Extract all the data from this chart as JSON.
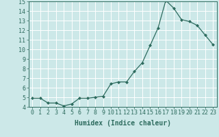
{
  "x": [
    0,
    1,
    2,
    3,
    4,
    5,
    6,
    7,
    8,
    9,
    10,
    11,
    12,
    13,
    14,
    15,
    16,
    17,
    18,
    19,
    20,
    21,
    22,
    23
  ],
  "y": [
    4.9,
    4.9,
    4.4,
    4.4,
    4.1,
    4.3,
    4.9,
    4.9,
    5.0,
    5.1,
    6.4,
    6.6,
    6.6,
    7.7,
    8.6,
    10.4,
    12.2,
    15.1,
    14.3,
    13.1,
    12.9,
    12.5,
    11.5,
    10.5
  ],
  "line_color": "#2d6b5e",
  "marker": "D",
  "markersize": 2.0,
  "linewidth": 0.9,
  "xlabel": "Humidex (Indice chaleur)",
  "xlabel_fontsize": 7,
  "ylim": [
    4,
    15
  ],
  "xlim": [
    -0.5,
    23.5
  ],
  "yticks": [
    4,
    5,
    6,
    7,
    8,
    9,
    10,
    11,
    12,
    13,
    14,
    15
  ],
  "xticks": [
    0,
    1,
    2,
    3,
    4,
    5,
    6,
    7,
    8,
    9,
    10,
    11,
    12,
    13,
    14,
    15,
    16,
    17,
    18,
    19,
    20,
    21,
    22,
    23
  ],
  "background_color": "#cce8e8",
  "grid_color": "#ffffff",
  "tick_color": "#2d6b5e",
  "label_color": "#2d6b5e",
  "tick_fontsize": 6,
  "xlabel_weight": "bold"
}
